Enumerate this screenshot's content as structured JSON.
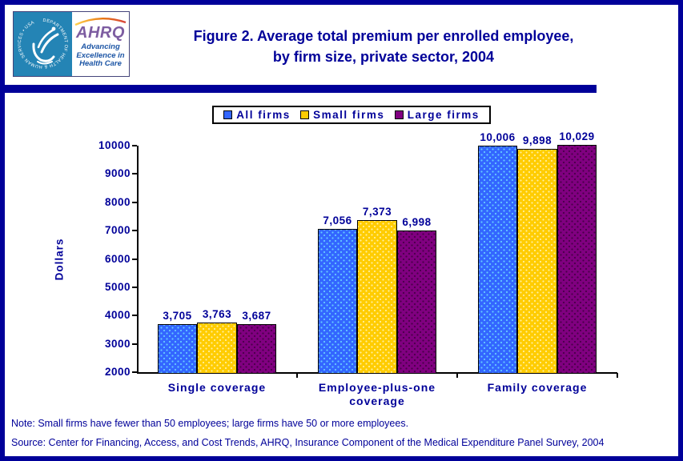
{
  "header": {
    "logo": {
      "seal_text": "DEPARTMENT OF HEALTH & HUMAN SERVICES • USA",
      "ahrq": "AHRQ",
      "tagline_lines": [
        "Advancing",
        "Excellence in",
        "Health Care"
      ]
    },
    "title_line1": "Figure 2. Average total premium per enrolled employee,",
    "title_line2": "by firm size, private sector, 2004"
  },
  "chart_data": {
    "type": "bar",
    "title": "Figure 2. Average total premium per enrolled employee, by firm size, private sector, 2004",
    "categories": [
      "Single coverage",
      "Employee-plus-one coverage",
      "Family coverage"
    ],
    "series": [
      {
        "name": "All firms",
        "color": "#3366FF",
        "dot_color": "#66CCFF",
        "values": [
          3705,
          7056,
          10006
        ]
      },
      {
        "name": "Small firms",
        "color": "#FFCC00",
        "dot_color": "#FFF0A0",
        "values": [
          3763,
          7373,
          9898
        ]
      },
      {
        "name": "Large firms",
        "color": "#800080",
        "dot_color": "#470047",
        "values": [
          3687,
          6998,
          10029
        ]
      }
    ],
    "xlabel": "",
    "ylabel": "Dollars",
    "ylim": [
      2000,
      10000
    ],
    "ytick_step": 1000,
    "grid": false,
    "legend_position": "top-center",
    "value_labels_shown": true,
    "value_label_format": "comma-thousands"
  },
  "footnotes": {
    "note": "Note: Small firms have fewer than 50 employees; large firms have 50 or more employees.",
    "source": "Source: Center for Financing, Access, and Cost Trends, AHRQ, Insurance Component of the Medical Expenditure Panel Survey, 2004"
  },
  "colors": {
    "accent_navy": "#000099",
    "axis_black": "#000000",
    "seal_background_blue": "#2484B5",
    "ahrq_purple": "#7D5DA1",
    "tagline_blue": "#1C55A5"
  }
}
